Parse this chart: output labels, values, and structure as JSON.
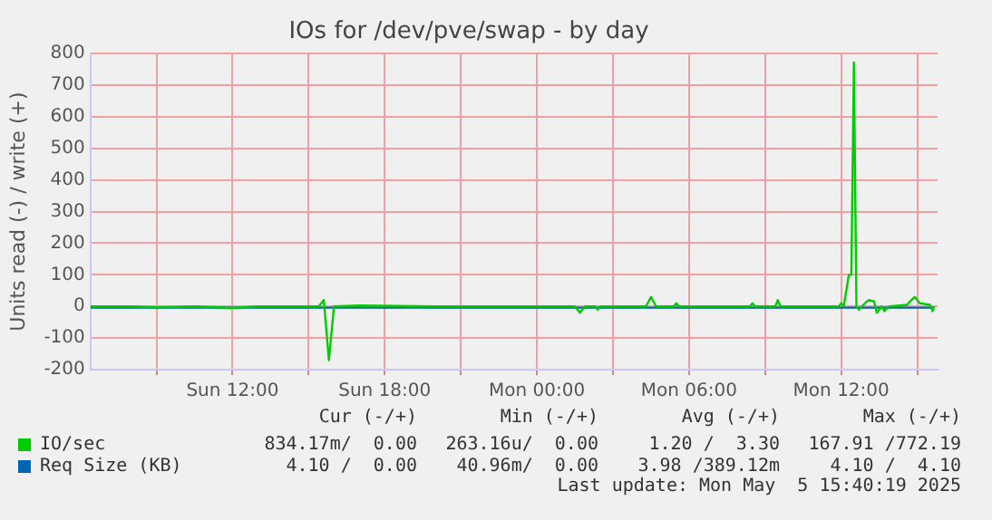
{
  "chart_data": {
    "type": "line",
    "title": "IOs for /dev/pve/swap - by day",
    "ylabel": "Units read (-) / write (+)",
    "xlim": [
      "2025-05-04T06:24",
      "2025-05-05T15:48"
    ],
    "xticks": [
      {
        "value": "2025-05-04T09:00",
        "label": null
      },
      {
        "value": "2025-05-04T12:00",
        "label": "Sun 12:00"
      },
      {
        "value": "2025-05-04T15:00",
        "label": null
      },
      {
        "value": "2025-05-04T18:00",
        "label": "Sun 18:00"
      },
      {
        "value": "2025-05-04T21:00",
        "label": null
      },
      {
        "value": "2025-05-05T00:00",
        "label": "Mon 00:00"
      },
      {
        "value": "2025-05-05T03:00",
        "label": null
      },
      {
        "value": "2025-05-05T06:00",
        "label": "Mon 06:00"
      },
      {
        "value": "2025-05-05T09:00",
        "label": null
      },
      {
        "value": "2025-05-05T12:00",
        "label": "Mon 12:00"
      },
      {
        "value": "2025-05-05T15:00",
        "label": null
      }
    ],
    "ylim": [
      -200,
      800
    ],
    "yticks": [
      -200,
      -100,
      0,
      100,
      200,
      300,
      400,
      500,
      600,
      700,
      800
    ],
    "grid": true,
    "legend": "bottom",
    "marker": "none",
    "series": [
      {
        "name": "IO/sec",
        "color": "#00cc00",
        "x": [
          "2025-05-04T06:24",
          "2025-05-04T08:00",
          "2025-05-04T09:00",
          "2025-05-04T10:30",
          "2025-05-04T12:00",
          "2025-05-04T13:00",
          "2025-05-04T15:24",
          "2025-05-04T15:36",
          "2025-05-04T15:48",
          "2025-05-04T16:00",
          "2025-05-04T17:00",
          "2025-05-04T20:00",
          "2025-05-05T00:00",
          "2025-05-05T01:30",
          "2025-05-05T01:42",
          "2025-05-05T01:54",
          "2025-05-05T02:18",
          "2025-05-05T02:24",
          "2025-05-05T02:30",
          "2025-05-05T04:18",
          "2025-05-05T04:30",
          "2025-05-05T04:42",
          "2025-05-05T05:24",
          "2025-05-05T05:30",
          "2025-05-05T05:36",
          "2025-05-05T08:24",
          "2025-05-05T08:30",
          "2025-05-05T08:36",
          "2025-05-05T09:24",
          "2025-05-05T09:30",
          "2025-05-05T09:36",
          "2025-05-05T11:54",
          "2025-05-05T12:00",
          "2025-05-05T12:06",
          "2025-05-05T12:18",
          "2025-05-05T12:24",
          "2025-05-05T12:30",
          "2025-05-05T12:36",
          "2025-05-05T12:42",
          "2025-05-05T13:00",
          "2025-05-05T13:06",
          "2025-05-05T13:18",
          "2025-05-05T13:24",
          "2025-05-05T13:36",
          "2025-05-05T13:42",
          "2025-05-05T13:54",
          "2025-05-05T14:36",
          "2025-05-05T14:42",
          "2025-05-05T14:54",
          "2025-05-05T15:06",
          "2025-05-05T15:30",
          "2025-05-05T15:36",
          "2025-05-05T15:40"
        ],
        "values": [
          0,
          0,
          -3,
          0,
          -5,
          0,
          0,
          20,
          -170,
          0,
          3,
          0,
          0,
          0,
          -20,
          0,
          0,
          -10,
          0,
          0,
          30,
          0,
          0,
          10,
          0,
          0,
          10,
          0,
          0,
          20,
          0,
          0,
          10,
          0,
          100,
          100,
          772,
          0,
          -10,
          15,
          20,
          15,
          -20,
          0,
          -15,
          0,
          5,
          15,
          30,
          10,
          5,
          -15,
          0
        ]
      },
      {
        "name": "Req Size (KB)",
        "color": "#0066b3",
        "x": [
          "2025-05-04T06:24",
          "2025-05-04T12:00",
          "2025-05-04T18:00",
          "2025-05-05T00:00",
          "2025-05-05T06:00",
          "2025-05-05T12:00",
          "2025-05-05T15:40"
        ],
        "values": [
          -4,
          -4,
          -4,
          -4,
          -4,
          -4,
          -4
        ]
      }
    ],
    "annotations": [
      "Cur (-/+)",
      "Min (-/+)",
      "Avg (-/+)",
      "Max (-/+)",
      "834.17m/  0.00",
      "263.16u/  0.00",
      "1.20 /  3.30",
      "167.91 /772.19",
      "4.10 /  0.00",
      "40.96m/  0.00",
      "3.98 /389.12m",
      "4.10 /  4.10",
      "Last update: Mon May  5 15:40:19 2025"
    ]
  }
}
